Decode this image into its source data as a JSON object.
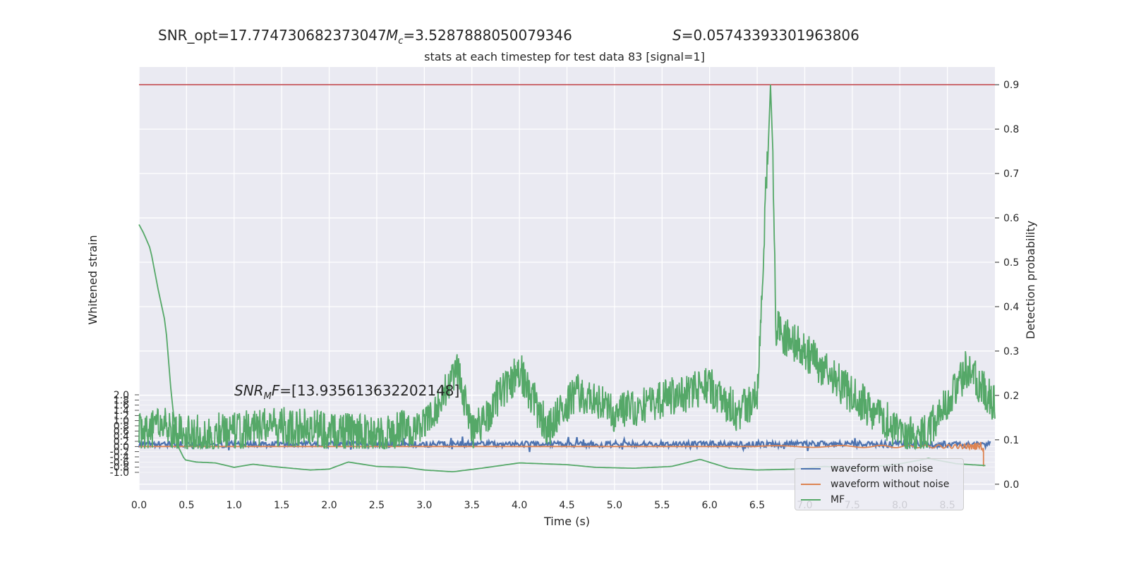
{
  "header": {
    "snr_opt": "SNR_opt=17.774730682373047",
    "mc": "=3.5287888050079346",
    "s": "=0.05743393301963806",
    "snr_mf": "=[13.935613632202148]"
  },
  "chart_data": {
    "type": "line",
    "title": "stats at each timestep for test data 83 [signal=1]",
    "xlabel": "Time (s)",
    "ylabel_left": "Whitened strain",
    "ylabel_right": "Detection probability",
    "xlim": [
      0.0,
      9.0
    ],
    "ylim_right": [
      -0.013,
      0.94
    ],
    "x_ticks": [
      "0.0",
      "0.5",
      "1.0",
      "1.5",
      "2.0",
      "2.5",
      "3.0",
      "3.5",
      "4.0",
      "4.5",
      "5.0",
      "5.5",
      "6.0",
      "6.5",
      "7.0",
      "7.5",
      "8.0",
      "8.5"
    ],
    "y_right_ticks": [
      "0.0",
      "0.1",
      "0.2",
      "0.3",
      "0.4",
      "0.5",
      "0.6",
      "0.7",
      "0.8",
      "0.9"
    ],
    "y_left_ticks": [
      "2.0",
      "1.8",
      "1.6",
      "1.4",
      "1.2",
      "1.0",
      "0.8",
      "0.6",
      "0.4",
      "0.2",
      "0.0",
      "-0.2",
      "-0.4",
      "-0.6",
      "-0.8",
      "-1.0"
    ],
    "threshold": 0.9,
    "grid": true,
    "legend_position": "bottom-right",
    "series": [
      {
        "name": "waveform with noise",
        "color": "#4c72b0"
      },
      {
        "name": "waveform without noise",
        "color": "#dd8452"
      },
      {
        "name": "MF",
        "color": "#55a868"
      }
    ],
    "detection_probability": {
      "color": "#55a868",
      "keypoints": [
        [
          0.0,
          0.12
        ],
        [
          0.3,
          0.13
        ],
        [
          0.5,
          0.11
        ],
        [
          1.0,
          0.12
        ],
        [
          1.5,
          0.13
        ],
        [
          2.0,
          0.12
        ],
        [
          2.5,
          0.11
        ],
        [
          3.0,
          0.13
        ],
        [
          3.35,
          0.26
        ],
        [
          3.5,
          0.11
        ],
        [
          4.0,
          0.26
        ],
        [
          4.3,
          0.12
        ],
        [
          4.6,
          0.21
        ],
        [
          5.0,
          0.16
        ],
        [
          5.5,
          0.19
        ],
        [
          6.0,
          0.22
        ],
        [
          6.3,
          0.16
        ],
        [
          6.5,
          0.2
        ],
        [
          6.64,
          0.9
        ],
        [
          6.7,
          0.35
        ],
        [
          7.0,
          0.3
        ],
        [
          7.5,
          0.2
        ],
        [
          8.0,
          0.12
        ],
        [
          8.2,
          0.1
        ],
        [
          8.5,
          0.18
        ],
        [
          8.7,
          0.26
        ],
        [
          9.0,
          0.18
        ]
      ]
    },
    "mf_curve": {
      "color": "#55a868",
      "keypoints": [
        [
          0.0,
          0.585
        ],
        [
          0.05,
          0.565
        ],
        [
          0.12,
          0.53
        ],
        [
          0.2,
          0.44
        ],
        [
          0.28,
          0.36
        ],
        [
          0.34,
          0.2
        ],
        [
          0.4,
          0.09
        ],
        [
          0.48,
          0.055
        ],
        [
          0.6,
          0.05
        ],
        [
          0.8,
          0.048
        ],
        [
          1.0,
          0.038
        ],
        [
          1.2,
          0.045
        ],
        [
          1.4,
          0.04
        ],
        [
          1.6,
          0.036
        ],
        [
          1.8,
          0.032
        ],
        [
          2.0,
          0.034
        ],
        [
          2.2,
          0.05
        ],
        [
          2.5,
          0.04
        ],
        [
          2.8,
          0.038
        ],
        [
          3.0,
          0.032
        ],
        [
          3.3,
          0.028
        ],
        [
          3.6,
          0.036
        ],
        [
          4.0,
          0.048
        ],
        [
          4.5,
          0.044
        ],
        [
          4.8,
          0.038
        ],
        [
          5.2,
          0.036
        ],
        [
          5.6,
          0.04
        ],
        [
          5.9,
          0.056
        ],
        [
          6.2,
          0.036
        ],
        [
          6.5,
          0.032
        ],
        [
          6.9,
          0.034
        ],
        [
          7.2,
          0.04
        ],
        [
          7.6,
          0.036
        ],
        [
          8.0,
          0.046
        ],
        [
          8.3,
          0.058
        ],
        [
          8.6,
          0.046
        ],
        [
          8.9,
          0.042
        ]
      ]
    },
    "noise_band": {
      "color": "#4c72b0",
      "center": 0.09,
      "half_width": 0.007
    },
    "clean_waveform": {
      "color": "#dd8452",
      "level": 0.085,
      "chirp_start": 6.5,
      "merger": 8.88
    }
  },
  "legend": {
    "items": [
      {
        "label": "waveform with noise",
        "color": "#4c72b0"
      },
      {
        "label": "waveform without noise",
        "color": "#dd8452"
      },
      {
        "label": "MF",
        "color": "#55a868"
      }
    ]
  }
}
